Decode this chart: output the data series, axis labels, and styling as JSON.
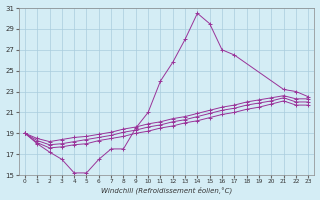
{
  "xlabel": "Windchill (Refroidissement éolien,°C)",
  "background_color": "#d4edf5",
  "grid_color": "#aaccdd",
  "line_color": "#993399",
  "xlim": [
    -0.5,
    23.5
  ],
  "ylim": [
    15,
    31
  ],
  "yticks": [
    15,
    17,
    19,
    21,
    23,
    25,
    27,
    29,
    31
  ],
  "xticks": [
    0,
    1,
    2,
    3,
    4,
    5,
    6,
    7,
    8,
    9,
    10,
    11,
    12,
    13,
    14,
    15,
    16,
    17,
    18,
    19,
    20,
    21,
    22,
    23
  ],
  "series": [
    {
      "x": [
        0,
        1,
        2,
        3,
        4,
        5,
        6,
        7,
        8,
        9,
        10,
        11,
        12,
        13,
        14,
        15,
        16,
        17,
        21,
        22,
        23
      ],
      "y": [
        19.0,
        18.0,
        17.2,
        16.5,
        15.2,
        15.2,
        16.5,
        17.5,
        17.5,
        19.5,
        21.0,
        24.0,
        25.8,
        28.0,
        30.5,
        29.5,
        27.0,
        26.5,
        23.2,
        23.0,
        22.5
      ]
    },
    {
      "x": [
        0,
        1,
        2,
        3,
        4,
        5,
        6,
        7,
        8,
        9,
        10,
        11,
        12,
        13,
        14,
        15,
        16,
        17,
        18,
        19,
        20,
        21,
        22,
        23
      ],
      "y": [
        19.0,
        18.5,
        18.2,
        18.4,
        18.6,
        18.7,
        18.9,
        19.1,
        19.4,
        19.6,
        19.9,
        20.1,
        20.4,
        20.6,
        20.9,
        21.2,
        21.5,
        21.7,
        22.0,
        22.2,
        22.4,
        22.6,
        22.3,
        22.3
      ]
    },
    {
      "x": [
        0,
        1,
        2,
        3,
        4,
        5,
        6,
        7,
        8,
        9,
        10,
        11,
        12,
        13,
        14,
        15,
        16,
        17,
        18,
        19,
        20,
        21,
        22,
        23
      ],
      "y": [
        19.0,
        18.3,
        17.9,
        18.0,
        18.2,
        18.4,
        18.6,
        18.8,
        19.1,
        19.3,
        19.6,
        19.8,
        20.1,
        20.3,
        20.6,
        20.9,
        21.2,
        21.4,
        21.7,
        21.9,
        22.1,
        22.4,
        22.0,
        22.0
      ]
    },
    {
      "x": [
        0,
        1,
        2,
        3,
        4,
        5,
        6,
        7,
        8,
        9,
        10,
        11,
        12,
        13,
        14,
        15,
        16,
        17,
        18,
        19,
        20,
        21,
        22,
        23
      ],
      "y": [
        19.0,
        18.1,
        17.6,
        17.7,
        17.9,
        18.0,
        18.3,
        18.5,
        18.7,
        19.0,
        19.2,
        19.5,
        19.7,
        20.0,
        20.2,
        20.5,
        20.8,
        21.0,
        21.3,
        21.5,
        21.8,
        22.1,
        21.7,
        21.7
      ]
    }
  ]
}
